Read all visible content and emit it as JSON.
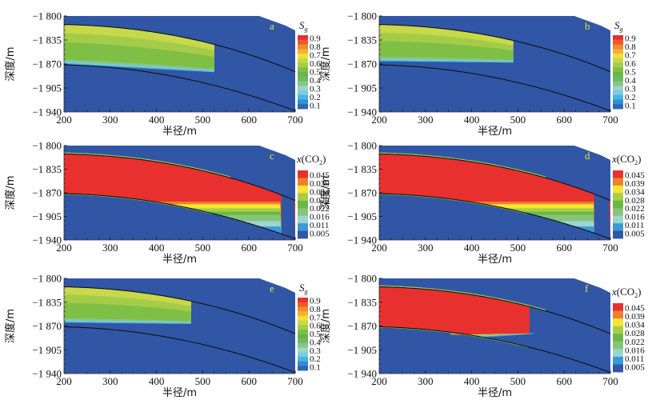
{
  "chart_data": [
    {
      "type": "heatmap",
      "panel": "a",
      "variable": "Sg",
      "colorbar_title": "S",
      "colorbar_title_sub": "g",
      "xlabel": "半径/m",
      "ylabel": "深度/m",
      "xlim": [
        200,
        700
      ],
      "ylim": [
        -1940,
        -1800
      ],
      "xticks": [
        "200",
        "300",
        "400",
        "500",
        "600",
        "700"
      ],
      "yticks": [
        "−1 800",
        "−1 835",
        "−1 870",
        "−1 905",
        "−1 940"
      ],
      "colorbar_ticks": [
        "0.9",
        "0.8",
        "0.7",
        "0.6",
        "0.5",
        "0.4",
        "0.3",
        "0.2",
        "0.1"
      ],
      "plume_extent_radius": 525,
      "plume_bottom_depth": -1870
    },
    {
      "type": "heatmap",
      "panel": "b",
      "variable": "Sg",
      "colorbar_title": "S",
      "colorbar_title_sub": "g",
      "xlabel": "半径/m",
      "ylabel": "深度/m",
      "xlim": [
        200,
        700
      ],
      "ylim": [
        -1940,
        -1800
      ],
      "xticks": [
        "200",
        "300",
        "400",
        "500",
        "600",
        "700"
      ],
      "yticks": [
        "−1 800",
        "−1 835",
        "−1 870",
        "−1 905",
        "−1 940"
      ],
      "colorbar_ticks": [
        "0.9",
        "0.8",
        "0.7",
        "0.6",
        "0.5",
        "0.4",
        "0.3",
        "0.2",
        "0.1"
      ],
      "plume_extent_radius": 490,
      "plume_bottom_depth": -1866
    },
    {
      "type": "heatmap",
      "panel": "c",
      "variable": "x(CO2)",
      "colorbar_title": "x(CO",
      "colorbar_title_sub": "2",
      "colorbar_title_end": ")",
      "xlabel": "半径/m",
      "ylabel": "深度/m",
      "xlim": [
        200,
        700
      ],
      "ylim": [
        -1940,
        -1800
      ],
      "xticks": [
        "200",
        "300",
        "400",
        "500",
        "600",
        "700"
      ],
      "yticks": [
        "−1 800",
        "−1 835",
        "−1 870",
        "−1 905",
        "−1 940"
      ],
      "colorbar_ticks": [
        "0.045",
        "0.039",
        "0.034",
        "0.028",
        "0.022",
        "0.016",
        "0.011",
        "0.005"
      ],
      "front_extent_radius": 670
    },
    {
      "type": "heatmap",
      "panel": "d",
      "variable": "x(CO2)",
      "colorbar_title": "x(CO",
      "colorbar_title_sub": "2",
      "colorbar_title_end": ")",
      "xlabel": "半径/m",
      "ylabel": "深度/m",
      "xlim": [
        200,
        700
      ],
      "ylim": [
        -1940,
        -1800
      ],
      "xticks": [
        "200",
        "300",
        "400",
        "500",
        "600",
        "700"
      ],
      "yticks": [
        "−1 800",
        "−1 835",
        "−1 870",
        "−1 905",
        "−1 940"
      ],
      "colorbar_ticks": [
        "0.045",
        "0.039",
        "0.034",
        "0.028",
        "0.022",
        "0.016",
        "0.011",
        "0.005"
      ],
      "front_extent_radius": 665
    },
    {
      "type": "heatmap",
      "panel": "e",
      "variable": "Sg",
      "colorbar_title": "S",
      "colorbar_title_sub": "g",
      "xlabel": "半径/m",
      "ylabel": "深度/m",
      "xlim": [
        200,
        700
      ],
      "ylim": [
        -1940,
        -1800
      ],
      "xticks": [
        "200",
        "300",
        "400",
        "500",
        "600",
        "700"
      ],
      "yticks": [
        "−1 800",
        "−1 835",
        "−1 870",
        "−1 905",
        "−1 940"
      ],
      "colorbar_ticks": [
        "0.9",
        "0.8",
        "0.7",
        "0.6",
        "0.5",
        "0.4",
        "0.3",
        "0.2",
        "0.1"
      ],
      "plume_extent_radius": 478,
      "plume_bottom_depth": -1865
    },
    {
      "type": "heatmap",
      "panel": "f",
      "variable": "x(CO2)",
      "colorbar_title": "x(CO",
      "colorbar_title_sub": "2",
      "colorbar_title_end": ")",
      "xlabel": "半径/m",
      "ylabel": "深度/m",
      "xlim": [
        200,
        700
      ],
      "ylim": [
        -1940,
        -1800
      ],
      "xticks": [
        "200",
        "300",
        "400",
        "500",
        "600",
        "700"
      ],
      "yticks": [
        "−1 800",
        "−1 835",
        "−1 870",
        "−1 905",
        "−1 940"
      ],
      "colorbar_ticks": [
        "0.045",
        "0.039",
        "0.034",
        "0.028",
        "0.022",
        "0.016",
        "0.011",
        "0.005"
      ],
      "front_extent_radius": 535
    }
  ],
  "colors": {
    "background_blue": "#3156a5",
    "sg_scale": [
      "#e8312f",
      "#ee5a2c",
      "#f28a2e",
      "#f3b22f",
      "#f2df3a",
      "#c7d84a",
      "#a5cc49",
      "#7fbf45",
      "#67b646",
      "#6fba63",
      "#86c58c",
      "#9fd3c4",
      "#7ccbe3",
      "#48b4e4",
      "#2f8fd0",
      "#2f65b3"
    ],
    "co2_scale": [
      "#e8312f",
      "#f07f2d",
      "#f5e634",
      "#a9cd47",
      "#6bb846",
      "#86c47a",
      "#9bd5d0",
      "#3a9ad6",
      "#3156a5"
    ],
    "panel_letter": "#e8e23a"
  }
}
